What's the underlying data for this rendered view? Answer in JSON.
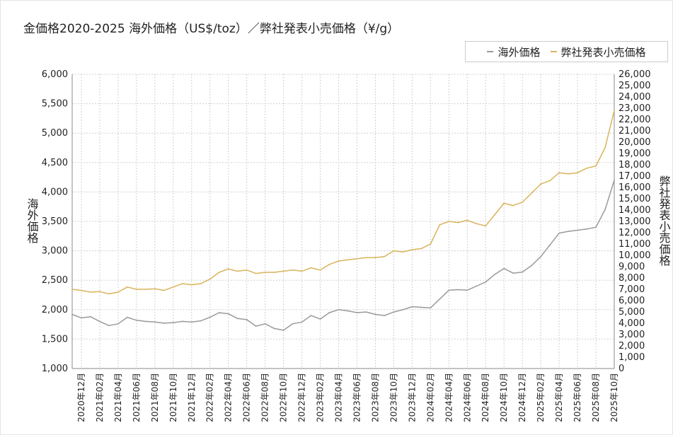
{
  "chart_data": {
    "type": "line",
    "title": "金価格2020-2025 海外価格（US$/toz）／弊社発表小売価格（¥/g）",
    "ylabel_left": "海外価格",
    "ylabel_right": "弊社発表小売価格",
    "ylim_left": [
      1000,
      6000
    ],
    "ylim_right": [
      0,
      26000
    ],
    "yticks_left": [
      "1,000",
      "1,500",
      "2,000",
      "2,500",
      "3,000",
      "3,500",
      "4,000",
      "4,500",
      "5,000",
      "5,500",
      "6,000"
    ],
    "yticks_right": [
      "0",
      "1,000",
      "2,000",
      "3,000",
      "4,000",
      "5,000",
      "6,000",
      "7,000",
      "8,000",
      "9,000",
      "10,000",
      "11,000",
      "12,000",
      "13,000",
      "14,000",
      "15,000",
      "16,000",
      "17,000",
      "18,000",
      "19,000",
      "20,000",
      "21,000",
      "22,000",
      "23,000",
      "24,000",
      "25,000",
      "26,000"
    ],
    "x_tick_labels": [
      "2020年12月",
      "2021年02月",
      "2021年04月",
      "2021年06月",
      "2021年08月",
      "2021年10月",
      "2021年12月",
      "2022年02月",
      "2022年04月",
      "2022年06月",
      "2022年08月",
      "2022年10月",
      "2022年12月",
      "2023年02月",
      "2023年04月",
      "2023年06月",
      "2023年08月",
      "2023年10月",
      "2023年12月",
      "2024年02月",
      "2024年04月",
      "2024年06月",
      "2024年08月",
      "2024年10月",
      "2024年12月",
      "2025年02月",
      "2025年04月",
      "2025年06月",
      "2025年08月",
      "2025年10月"
    ],
    "x_range": [
      "2020-11",
      "2025-10"
    ],
    "grid": true,
    "legend_position": "top-right",
    "series": [
      {
        "name": "海外価格",
        "axis": "left",
        "color": "#9a9a9a",
        "x": [
          "2020-11",
          "2020-12",
          "2021-01",
          "2021-02",
          "2021-03",
          "2021-04",
          "2021-05",
          "2021-06",
          "2021-07",
          "2021-08",
          "2021-09",
          "2021-10",
          "2021-11",
          "2021-12",
          "2022-01",
          "2022-02",
          "2022-03",
          "2022-04",
          "2022-05",
          "2022-06",
          "2022-07",
          "2022-08",
          "2022-09",
          "2022-10",
          "2022-11",
          "2022-12",
          "2023-01",
          "2023-02",
          "2023-03",
          "2023-04",
          "2023-05",
          "2023-06",
          "2023-07",
          "2023-08",
          "2023-09",
          "2023-10",
          "2023-11",
          "2023-12",
          "2024-01",
          "2024-02",
          "2024-03",
          "2024-04",
          "2024-05",
          "2024-06",
          "2024-07",
          "2024-08",
          "2024-09",
          "2024-10",
          "2024-11",
          "2024-12",
          "2025-01",
          "2025-02",
          "2025-03",
          "2025-04",
          "2025-05",
          "2025-06",
          "2025-07",
          "2025-08",
          "2025-09",
          "2025-10"
        ],
        "values": [
          1920,
          1860,
          1880,
          1800,
          1730,
          1760,
          1870,
          1820,
          1800,
          1790,
          1770,
          1780,
          1800,
          1790,
          1810,
          1870,
          1950,
          1930,
          1850,
          1830,
          1720,
          1760,
          1680,
          1650,
          1760,
          1790,
          1900,
          1840,
          1950,
          2000,
          1980,
          1950,
          1960,
          1920,
          1900,
          1960,
          2000,
          2050,
          2040,
          2030,
          2180,
          2330,
          2340,
          2330,
          2400,
          2470,
          2600,
          2700,
          2620,
          2640,
          2750,
          2900,
          3100,
          3300,
          3330,
          3350,
          3370,
          3400,
          3700,
          4200
        ]
      },
      {
        "name": "弊社発表小売価格",
        "axis": "right",
        "color": "#d9b45a",
        "x": [
          "2020-11",
          "2020-12",
          "2021-01",
          "2021-02",
          "2021-03",
          "2021-04",
          "2021-05",
          "2021-06",
          "2021-07",
          "2021-08",
          "2021-09",
          "2021-10",
          "2021-11",
          "2021-12",
          "2022-01",
          "2022-02",
          "2022-03",
          "2022-04",
          "2022-05",
          "2022-06",
          "2022-07",
          "2022-08",
          "2022-09",
          "2022-10",
          "2022-11",
          "2022-12",
          "2023-01",
          "2023-02",
          "2023-03",
          "2023-04",
          "2023-05",
          "2023-06",
          "2023-07",
          "2023-08",
          "2023-09",
          "2023-10",
          "2023-11",
          "2023-12",
          "2024-01",
          "2024-02",
          "2024-03",
          "2024-04",
          "2024-05",
          "2024-06",
          "2024-07",
          "2024-08",
          "2024-09",
          "2024-10",
          "2024-11",
          "2024-12",
          "2025-01",
          "2025-02",
          "2025-03",
          "2025-04",
          "2025-05",
          "2025-06",
          "2025-07",
          "2025-08",
          "2025-09",
          "2025-10"
        ],
        "values": [
          7000,
          6900,
          6750,
          6800,
          6600,
          6750,
          7200,
          7000,
          7000,
          7050,
          6900,
          7200,
          7500,
          7400,
          7500,
          7900,
          8500,
          8800,
          8600,
          8700,
          8400,
          8500,
          8500,
          8600,
          8700,
          8600,
          8900,
          8700,
          9200,
          9500,
          9600,
          9700,
          9800,
          9800,
          9900,
          10400,
          10300,
          10500,
          10600,
          11000,
          12700,
          13000,
          12900,
          13100,
          12800,
          12600,
          13600,
          14600,
          14400,
          14700,
          15500,
          16300,
          16600,
          17300,
          17200,
          17300,
          17700,
          17900,
          19500,
          22800
        ]
      }
    ]
  }
}
